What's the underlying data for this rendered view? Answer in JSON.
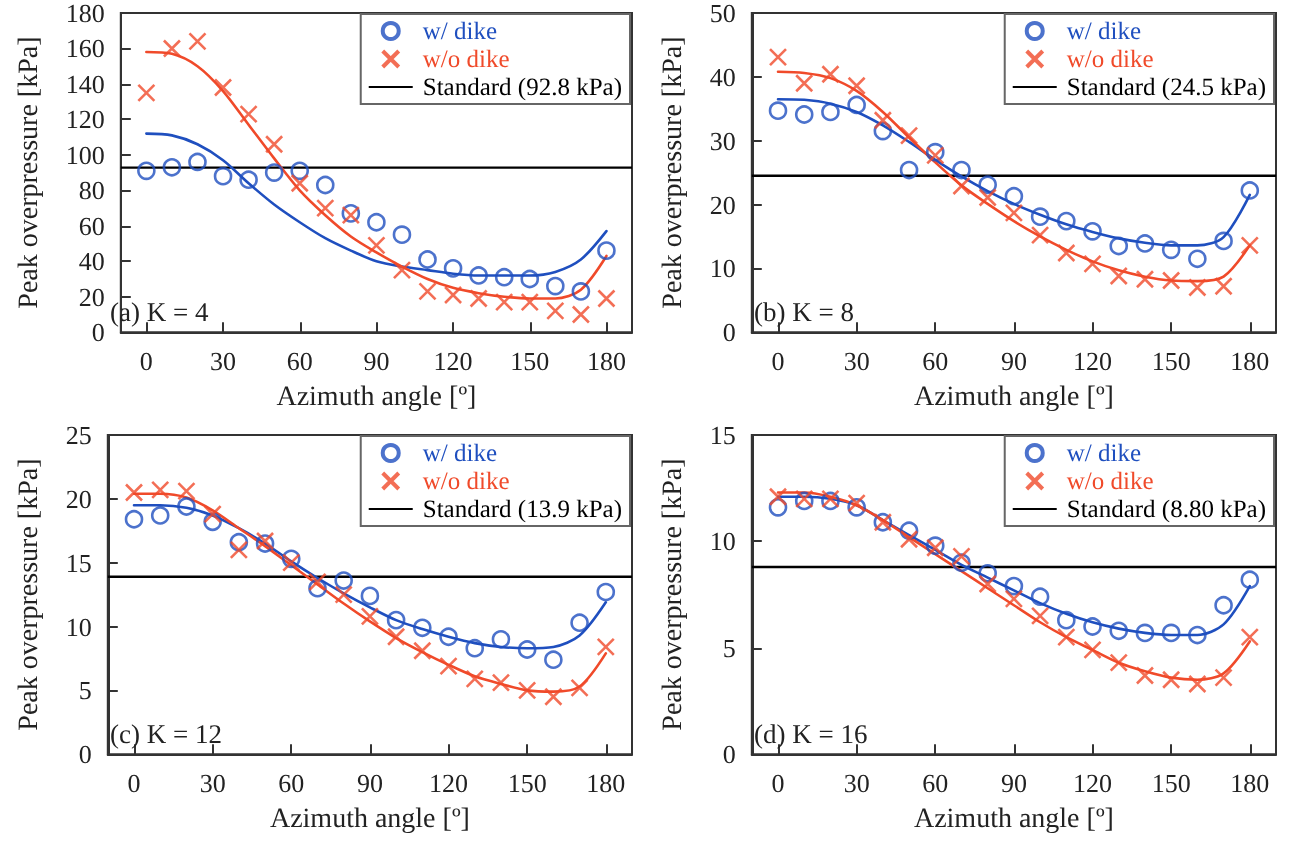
{
  "chart_data": [
    {
      "type": "scatter",
      "xlabel": "Azimuth angle [º]",
      "ylabel": "Peak overpressure [kPa]",
      "annotations": [
        "(a) K = 4"
      ],
      "legend": "top right",
      "x": [
        0,
        10,
        20,
        30,
        40,
        50,
        60,
        70,
        80,
        90,
        100,
        110,
        120,
        130,
        140,
        150,
        160,
        170,
        180
      ],
      "xlim": [
        -10,
        190
      ],
      "xticks": [
        0,
        30,
        60,
        90,
        120,
        150,
        180
      ],
      "ylim": [
        0,
        180
      ],
      "yticks": [
        0,
        20,
        40,
        60,
        80,
        100,
        120,
        140,
        160,
        180
      ],
      "series": [
        {
          "name": "w/ dike",
          "marker": "circle",
          "color": "#1f4fbf",
          "values": [
            91,
            93,
            96,
            88,
            86,
            90,
            91,
            83,
            67,
            62,
            55,
            41,
            36,
            32,
            31,
            30,
            26,
            23,
            46
          ]
        },
        {
          "name": "w/o dike",
          "marker": "cross",
          "color": "#f04a2a",
          "values": [
            135,
            160,
            164,
            138,
            123,
            106,
            84,
            70,
            66,
            49,
            35,
            23,
            21,
            19,
            17,
            17,
            12,
            10,
            19
          ]
        },
        {
          "type": "line",
          "marker": "none",
          "color": "#1f4fbf",
          "values": [
            112,
            111,
            106,
            97,
            84,
            72,
            62,
            53,
            46,
            40,
            37,
            35,
            33,
            32,
            32,
            32,
            34,
            41,
            57
          ]
        },
        {
          "type": "line",
          "marker": "none",
          "color": "#f04a2a",
          "values": [
            158,
            157,
            150,
            136,
            117,
            98,
            80,
            66,
            54,
            45,
            37,
            30,
            25,
            22,
            20,
            19,
            19,
            24,
            43
          ]
        }
      ],
      "ref_lines": [
        {
          "axis": "y",
          "value": 92.8,
          "label": "Standard (92.8 kPa)",
          "color": "#000000"
        }
      ]
    },
    {
      "type": "scatter",
      "xlabel": "Azimuth angle [º]",
      "ylabel": "Peak overpressure [kPa]",
      "annotations": [
        "(b) K = 8"
      ],
      "legend": "top right",
      "x": [
        0,
        10,
        20,
        30,
        40,
        50,
        60,
        70,
        80,
        90,
        100,
        110,
        120,
        130,
        140,
        150,
        160,
        170,
        180
      ],
      "xlim": [
        -10,
        190
      ],
      "xticks": [
        0,
        30,
        60,
        90,
        120,
        150,
        180
      ],
      "ylim": [
        0,
        50
      ],
      "yticks": [
        0,
        10,
        20,
        30,
        40,
        50
      ],
      "series": [
        {
          "name": "w/ dike",
          "marker": "circle",
          "color": "#1f4fbf",
          "values": [
            34.7,
            34.1,
            34.5,
            35.6,
            31.5,
            25.4,
            28.2,
            25.4,
            23.1,
            21.3,
            18.1,
            17.4,
            15.8,
            13.5,
            13.9,
            12.9,
            11.5,
            14.3,
            22.2
          ]
        },
        {
          "name": "w/o dike",
          "marker": "cross",
          "color": "#f04a2a",
          "values": [
            43.1,
            39.0,
            40.4,
            38.6,
            33.2,
            30.8,
            27.7,
            22.9,
            21.1,
            18.7,
            15.2,
            12.4,
            10.7,
            8.8,
            8.3,
            8.1,
            7.0,
            7.2,
            13.6
          ]
        },
        {
          "type": "line",
          "marker": "none",
          "color": "#1f4fbf",
          "values": [
            36.5,
            36.4,
            35.8,
            34.5,
            32.4,
            29.8,
            27.0,
            24.4,
            22.1,
            20.1,
            18.4,
            16.9,
            15.7,
            14.7,
            14.0,
            13.6,
            13.6,
            14.9,
            21.5
          ]
        },
        {
          "type": "line",
          "marker": "none",
          "color": "#f04a2a",
          "values": [
            40.8,
            40.6,
            39.8,
            37.8,
            34.5,
            30.5,
            26.6,
            23.0,
            20.1,
            17.4,
            15.0,
            12.9,
            11.1,
            9.7,
            8.7,
            8.1,
            8.0,
            8.7,
            13.6
          ]
        }
      ],
      "ref_lines": [
        {
          "axis": "y",
          "value": 24.5,
          "label": "Standard (24.5 kPa)",
          "color": "#000000"
        }
      ]
    },
    {
      "type": "scatter",
      "xlabel": "Azimuth angle [º]",
      "ylabel": "Peak overpressure [kPa]",
      "annotations": [
        "(c) K = 12"
      ],
      "legend": "top right",
      "x": [
        0,
        10,
        20,
        30,
        40,
        50,
        60,
        70,
        80,
        90,
        100,
        110,
        120,
        130,
        140,
        150,
        160,
        170,
        180
      ],
      "xlim": [
        -10,
        190
      ],
      "xticks": [
        0,
        30,
        60,
        90,
        120,
        150,
        180
      ],
      "ylim": [
        0,
        25
      ],
      "yticks": [
        0,
        5,
        10,
        15,
        20,
        25
      ],
      "series": [
        {
          "name": "w/ dike",
          "marker": "circle",
          "color": "#1f4fbf",
          "values": [
            18.4,
            18.7,
            19.4,
            18.2,
            16.6,
            16.5,
            15.3,
            13.0,
            13.6,
            12.4,
            10.5,
            9.9,
            9.2,
            8.3,
            9.0,
            8.2,
            7.4,
            10.3,
            12.7
          ]
        },
        {
          "name": "w/o dike",
          "marker": "cross",
          "color": "#f04a2a",
          "values": [
            20.5,
            20.7,
            20.6,
            18.8,
            16.0,
            16.7,
            15.0,
            13.5,
            12.5,
            10.8,
            9.2,
            8.1,
            6.9,
            5.9,
            5.6,
            5.0,
            4.5,
            5.2,
            8.4
          ]
        },
        {
          "type": "line",
          "marker": "none",
          "color": "#1f4fbf",
          "values": [
            19.5,
            19.5,
            19.3,
            18.7,
            17.7,
            16.5,
            15.1,
            13.8,
            12.6,
            11.5,
            10.5,
            9.8,
            9.2,
            8.7,
            8.4,
            8.3,
            8.4,
            9.3,
            11.9
          ]
        },
        {
          "type": "line",
          "marker": "none",
          "color": "#f04a2a",
          "values": [
            20.4,
            20.4,
            20.1,
            19.1,
            17.7,
            16.3,
            14.8,
            13.3,
            11.8,
            10.4,
            9.1,
            8.0,
            7.0,
            6.1,
            5.5,
            5.0,
            4.9,
            5.3,
            7.9
          ]
        }
      ],
      "ref_lines": [
        {
          "axis": "y",
          "value": 13.9,
          "label": "Standard (13.9 kPa)",
          "color": "#000000"
        }
      ]
    },
    {
      "type": "scatter",
      "xlabel": "Azimuth angle [º]",
      "ylabel": "Peak overpressure [kPa]",
      "annotations": [
        "(d) K = 16"
      ],
      "legend": "top right",
      "x": [
        0,
        10,
        20,
        30,
        40,
        50,
        60,
        70,
        80,
        90,
        100,
        110,
        120,
        130,
        140,
        150,
        160,
        170,
        180
      ],
      "xlim": [
        -10,
        190
      ],
      "xticks": [
        0,
        30,
        60,
        90,
        120,
        150,
        180
      ],
      "ylim": [
        0,
        15
      ],
      "yticks": [
        0,
        5,
        10,
        15
      ],
      "series": [
        {
          "name": "w/ dike",
          "marker": "circle",
          "color": "#1f4fbf",
          "values": [
            11.6,
            11.9,
            11.9,
            11.6,
            10.9,
            10.5,
            9.8,
            9.0,
            8.5,
            7.9,
            7.4,
            6.3,
            6.0,
            5.8,
            5.7,
            5.7,
            5.6,
            7.0,
            8.2
          ]
        },
        {
          "name": "w/o dike",
          "marker": "cross",
          "color": "#f04a2a",
          "values": [
            12.1,
            12.0,
            12.0,
            11.8,
            10.9,
            10.1,
            9.7,
            9.3,
            8.0,
            7.3,
            6.5,
            5.5,
            4.9,
            4.3,
            3.7,
            3.5,
            3.3,
            3.6,
            5.5
          ]
        },
        {
          "type": "line",
          "marker": "none",
          "color": "#1f4fbf",
          "values": [
            12.1,
            12.1,
            12.0,
            11.7,
            11.0,
            10.3,
            9.6,
            8.9,
            8.3,
            7.7,
            7.1,
            6.6,
            6.2,
            5.9,
            5.7,
            5.6,
            5.6,
            6.1,
            7.9
          ]
        },
        {
          "type": "line",
          "marker": "none",
          "color": "#f04a2a",
          "values": [
            12.3,
            12.3,
            12.1,
            11.7,
            11.0,
            10.2,
            9.4,
            8.6,
            7.8,
            7.0,
            6.2,
            5.5,
            4.9,
            4.3,
            3.9,
            3.6,
            3.5,
            3.8,
            5.3
          ]
        }
      ],
      "ref_lines": [
        {
          "axis": "y",
          "value": 8.8,
          "label": "Standard (8.80 kPa)",
          "color": "#000000"
        }
      ]
    }
  ]
}
